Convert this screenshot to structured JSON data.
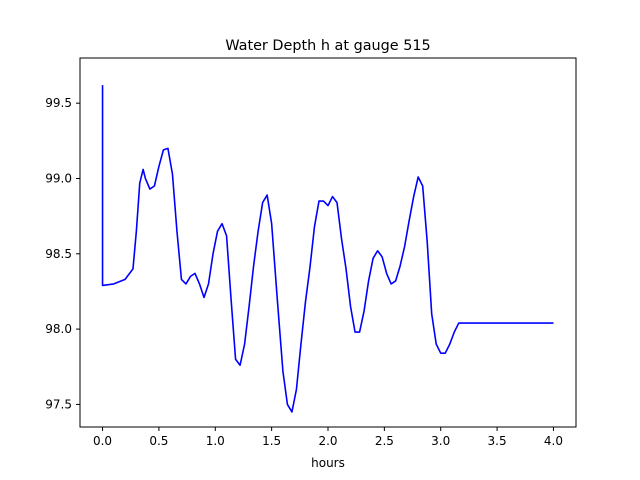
{
  "chart_data": {
    "type": "line",
    "title": "Water Depth h at gauge 515",
    "xlabel": "hours",
    "ylabel": "",
    "xlim": [
      -0.2,
      4.2
    ],
    "ylim": [
      97.35,
      99.8
    ],
    "xticks": [
      0.0,
      0.5,
      1.0,
      1.5,
      2.0,
      2.5,
      3.0,
      3.5,
      4.0
    ],
    "xtick_labels": [
      "0.0",
      "0.5",
      "1.0",
      "1.5",
      "2.0",
      "2.5",
      "3.0",
      "3.5",
      "4.0"
    ],
    "yticks": [
      97.5,
      98.0,
      98.5,
      99.0,
      99.5
    ],
    "ytick_labels": [
      "97.5",
      "98.0",
      "98.5",
      "99.0",
      "99.5"
    ],
    "grid": false,
    "series": [
      {
        "color": "#0000ff",
        "x": [
          0.0,
          0.0,
          0.001,
          0.1,
          0.2,
          0.27,
          0.3,
          0.33,
          0.36,
          0.38,
          0.42,
          0.46,
          0.5,
          0.54,
          0.58,
          0.62,
          0.66,
          0.7,
          0.74,
          0.78,
          0.82,
          0.86,
          0.9,
          0.94,
          0.98,
          1.02,
          1.06,
          1.1,
          1.14,
          1.18,
          1.22,
          1.26,
          1.3,
          1.34,
          1.38,
          1.42,
          1.46,
          1.5,
          1.55,
          1.6,
          1.64,
          1.68,
          1.72,
          1.76,
          1.8,
          1.84,
          1.88,
          1.92,
          1.96,
          2.0,
          2.04,
          2.08,
          2.12,
          2.16,
          2.2,
          2.24,
          2.28,
          2.32,
          2.36,
          2.4,
          2.44,
          2.48,
          2.52,
          2.56,
          2.6,
          2.64,
          2.68,
          2.72,
          2.76,
          2.8,
          2.84,
          2.88,
          2.92,
          2.96,
          3.0,
          3.04,
          3.08,
          3.12,
          3.16,
          3.2,
          3.24,
          3.28,
          3.32,
          3.36,
          3.4,
          3.44,
          3.48,
          3.52,
          3.56,
          3.6,
          3.64,
          3.68,
          3.72,
          3.76,
          3.8,
          3.84,
          3.88,
          3.92,
          3.96,
          4.0
        ],
        "values": [
          99.62,
          98.29,
          98.29,
          98.3,
          98.33,
          98.4,
          98.65,
          98.97,
          99.06,
          99.0,
          98.93,
          98.95,
          99.08,
          99.19,
          99.2,
          99.03,
          98.65,
          98.33,
          98.3,
          98.35,
          98.37,
          98.3,
          98.21,
          98.3,
          98.5,
          98.65,
          98.7,
          98.62,
          98.2,
          97.8,
          97.76,
          97.9,
          98.15,
          98.42,
          98.65,
          98.84,
          98.89,
          98.7,
          98.2,
          97.72,
          97.5,
          97.45,
          97.6,
          97.9,
          98.18,
          98.41,
          98.68,
          98.85,
          98.85,
          98.82,
          98.88,
          98.84,
          98.6,
          98.4,
          98.15,
          97.98,
          97.98,
          98.12,
          98.32,
          98.47,
          98.52,
          98.48,
          98.37,
          98.3,
          98.32,
          98.42,
          98.55,
          98.72,
          98.88,
          99.01,
          98.95,
          98.58,
          98.1,
          97.9,
          97.84,
          97.84,
          97.9,
          97.98,
          98.04,
          98.04,
          98.04,
          98.04,
          98.04,
          98.04,
          98.04,
          98.04,
          98.04,
          98.04,
          98.04,
          98.04,
          98.04,
          98.04,
          98.04,
          98.04,
          98.04,
          98.04,
          98.04,
          98.04,
          98.04,
          98.04
        ]
      }
    ]
  }
}
